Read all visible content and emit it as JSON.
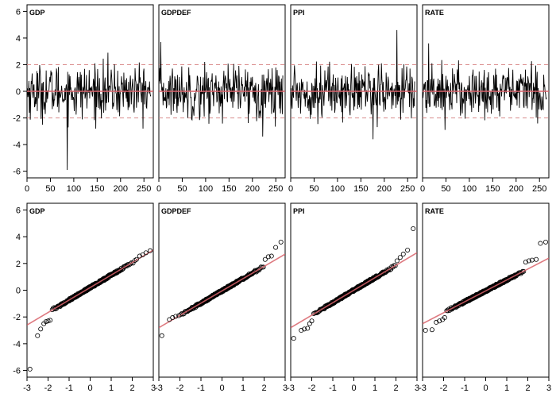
{
  "chart_data": [
    {
      "type": "line",
      "title": "GDP",
      "xlim": [
        0,
        270
      ],
      "ylim": [
        -6.5,
        6.5
      ],
      "xticks": [
        0,
        50,
        100,
        150,
        200,
        250
      ],
      "yticks": [
        -6,
        -4,
        -2,
        0,
        2,
        4,
        6
      ],
      "reference_lines": {
        "solid": 0,
        "dashed": [
          -2,
          2
        ]
      },
      "stats": {
        "n": 265,
        "min": -5.9,
        "max": 2.9,
        "amp": 1.0
      },
      "grid": false
    },
    {
      "type": "line",
      "title": "GDPDEF",
      "xlim": [
        0,
        270
      ],
      "ylim": [
        -6.5,
        6.5
      ],
      "xticks": [
        0,
        50,
        100,
        150,
        200,
        250
      ],
      "yticks": [
        -6,
        -4,
        -2,
        0,
        2,
        4,
        6
      ],
      "reference_lines": {
        "solid": 0,
        "dashed": [
          -2,
          2
        ]
      },
      "stats": {
        "n": 265,
        "min": -3.4,
        "max": 3.7,
        "amp": 1.0
      },
      "grid": false
    },
    {
      "type": "line",
      "title": "PPI",
      "xlim": [
        0,
        270
      ],
      "ylim": [
        -6.5,
        6.5
      ],
      "xticks": [
        0,
        50,
        100,
        150,
        200,
        250
      ],
      "yticks": [
        -6,
        -4,
        -2,
        0,
        2,
        4,
        6
      ],
      "reference_lines": {
        "solid": 0,
        "dashed": [
          -2,
          2
        ]
      },
      "stats": {
        "n": 265,
        "min": -3.6,
        "max": 4.6,
        "amp": 1.0
      },
      "grid": false
    },
    {
      "type": "line",
      "title": "RATE",
      "xlim": [
        0,
        270
      ],
      "ylim": [
        -6.5,
        6.5
      ],
      "xticks": [
        0,
        50,
        100,
        150,
        200,
        250
      ],
      "yticks": [
        -6,
        -4,
        -2,
        0,
        2,
        4,
        6
      ],
      "reference_lines": {
        "solid": 0,
        "dashed": [
          -2,
          2
        ]
      },
      "stats": {
        "n": 265,
        "min": -2.9,
        "max": 3.6,
        "amp": 1.0
      },
      "grid": false
    },
    {
      "type": "scatter",
      "title": "GDP",
      "xlim": [
        -3,
        3
      ],
      "ylim": [
        -6.5,
        6.5
      ],
      "xticks": [
        -3,
        -2,
        -1,
        0,
        1,
        2,
        3
      ],
      "yticks": [
        -6,
        -4,
        -2,
        0,
        2,
        4,
        6
      ],
      "reference_line": {
        "x": [
          -3,
          3
        ],
        "y": [
          -2.6,
          3.0
        ]
      },
      "points": [
        [
          -2.86,
          -5.9
        ],
        [
          -2.5,
          -3.4
        ],
        [
          -2.35,
          -2.9
        ],
        [
          -2.2,
          -2.5
        ],
        [
          -2.1,
          -2.35
        ],
        [
          -2.0,
          -2.3
        ],
        [
          -1.9,
          -2.25
        ],
        [
          2.2,
          2.3
        ],
        [
          2.35,
          2.55
        ],
        [
          2.5,
          2.65
        ],
        [
          2.65,
          2.8
        ],
        [
          2.85,
          2.95
        ]
      ],
      "grid": false
    },
    {
      "type": "scatter",
      "title": "GDPDEF",
      "xlim": [
        -3,
        3
      ],
      "ylim": [
        -6.5,
        6.5
      ],
      "xticks": [
        -3,
        -2,
        -1,
        0,
        1,
        2,
        3
      ],
      "yticks": [
        -6,
        -4,
        -2,
        0,
        2,
        4,
        6
      ],
      "reference_line": {
        "x": [
          -3,
          3
        ],
        "y": [
          -2.8,
          2.7
        ]
      },
      "points": [
        [
          -2.86,
          -3.4
        ],
        [
          -2.5,
          -2.2
        ],
        [
          -2.35,
          -2.05
        ],
        [
          -2.2,
          -1.95
        ],
        [
          -2.05,
          -1.9
        ],
        [
          2.05,
          2.3
        ],
        [
          2.2,
          2.5
        ],
        [
          2.35,
          2.55
        ],
        [
          2.55,
          3.2
        ],
        [
          2.8,
          3.6
        ]
      ],
      "grid": false
    },
    {
      "type": "scatter",
      "title": "PPI",
      "xlim": [
        -3,
        3
      ],
      "ylim": [
        -6.5,
        6.5
      ],
      "xticks": [
        -3,
        -2,
        -1,
        0,
        1,
        2,
        3
      ],
      "yticks": [
        -6,
        -4,
        -2,
        0,
        2,
        4,
        6
      ],
      "reference_line": {
        "x": [
          -3,
          3
        ],
        "y": [
          -2.8,
          2.8
        ]
      },
      "points": [
        [
          -2.86,
          -3.6
        ],
        [
          -2.5,
          -3.0
        ],
        [
          -2.35,
          -2.9
        ],
        [
          -2.2,
          -2.85
        ],
        [
          -2.1,
          -2.5
        ],
        [
          -2.0,
          -2.3
        ],
        [
          2.05,
          2.2
        ],
        [
          2.2,
          2.45
        ],
        [
          2.35,
          2.7
        ],
        [
          2.55,
          3.0
        ],
        [
          2.82,
          4.6
        ]
      ],
      "grid": false
    },
    {
      "type": "scatter",
      "title": "RATE",
      "xlim": [
        -3,
        3
      ],
      "ylim": [
        -6.5,
        6.5
      ],
      "xticks": [
        -3,
        -2,
        -1,
        0,
        1,
        2,
        3
      ],
      "yticks": [
        -6,
        -4,
        -2,
        0,
        2,
        4,
        6
      ],
      "reference_line": {
        "x": [
          -3,
          3
        ],
        "y": [
          -2.5,
          2.4
        ]
      },
      "points": [
        [
          -2.86,
          -3.0
        ],
        [
          -2.55,
          -2.95
        ],
        [
          -2.35,
          -2.4
        ],
        [
          -2.2,
          -2.3
        ],
        [
          -2.05,
          -2.2
        ],
        [
          -1.95,
          -2.05
        ],
        [
          1.9,
          2.1
        ],
        [
          2.05,
          2.2
        ],
        [
          2.2,
          2.25
        ],
        [
          2.4,
          2.3
        ],
        [
          2.6,
          3.5
        ],
        [
          2.85,
          3.6
        ]
      ],
      "grid": false
    }
  ]
}
